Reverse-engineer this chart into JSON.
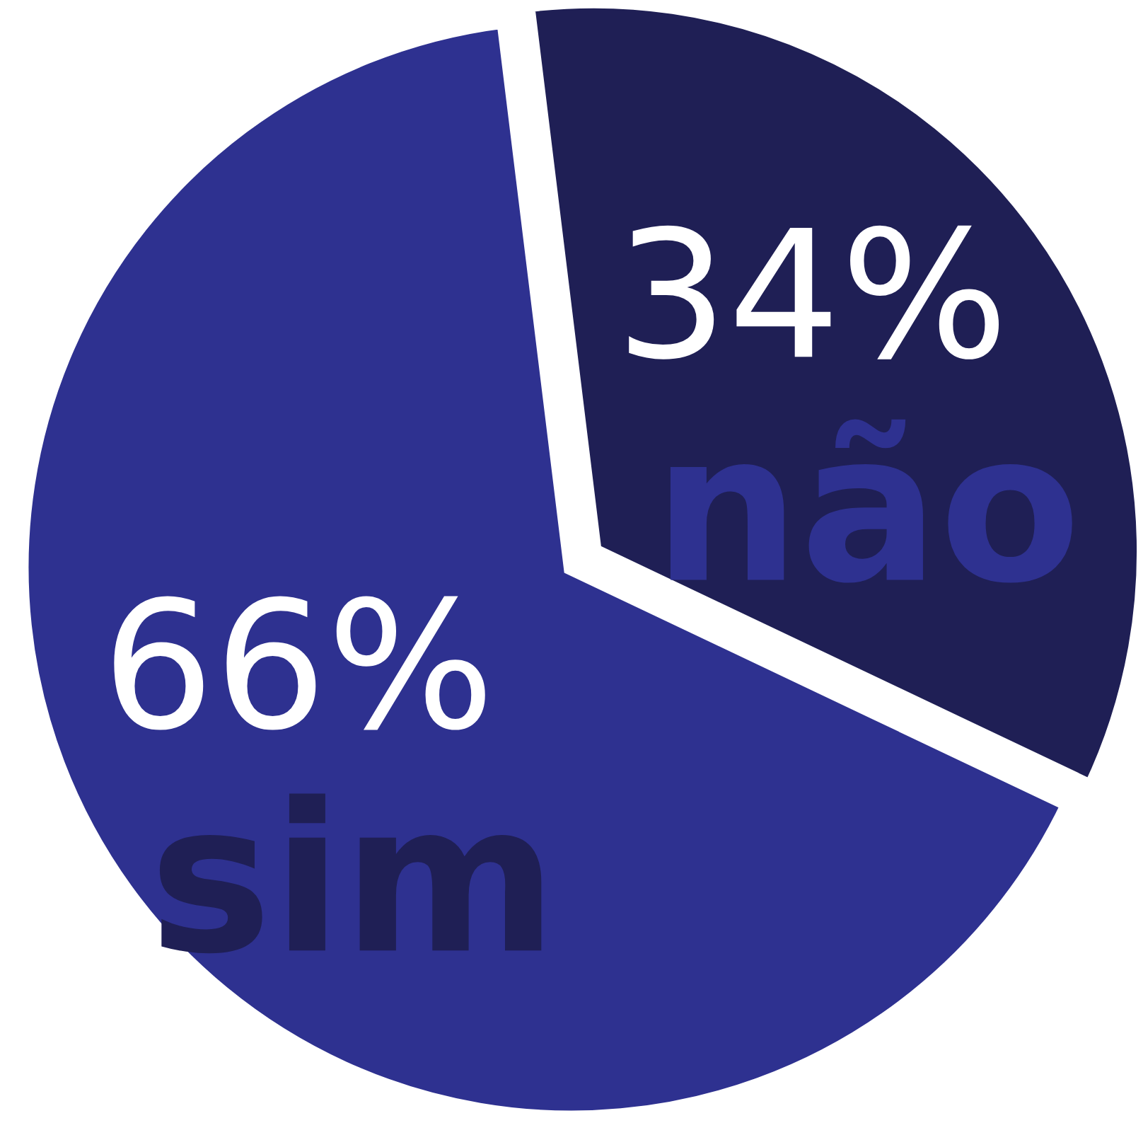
{
  "chart_data": {
    "type": "pie",
    "categories": [
      "não",
      "sim"
    ],
    "values": [
      34,
      66
    ],
    "colors": [
      "#1f1f55",
      "#2e3190"
    ],
    "value_labels": [
      "34%",
      "66%"
    ]
  }
}
